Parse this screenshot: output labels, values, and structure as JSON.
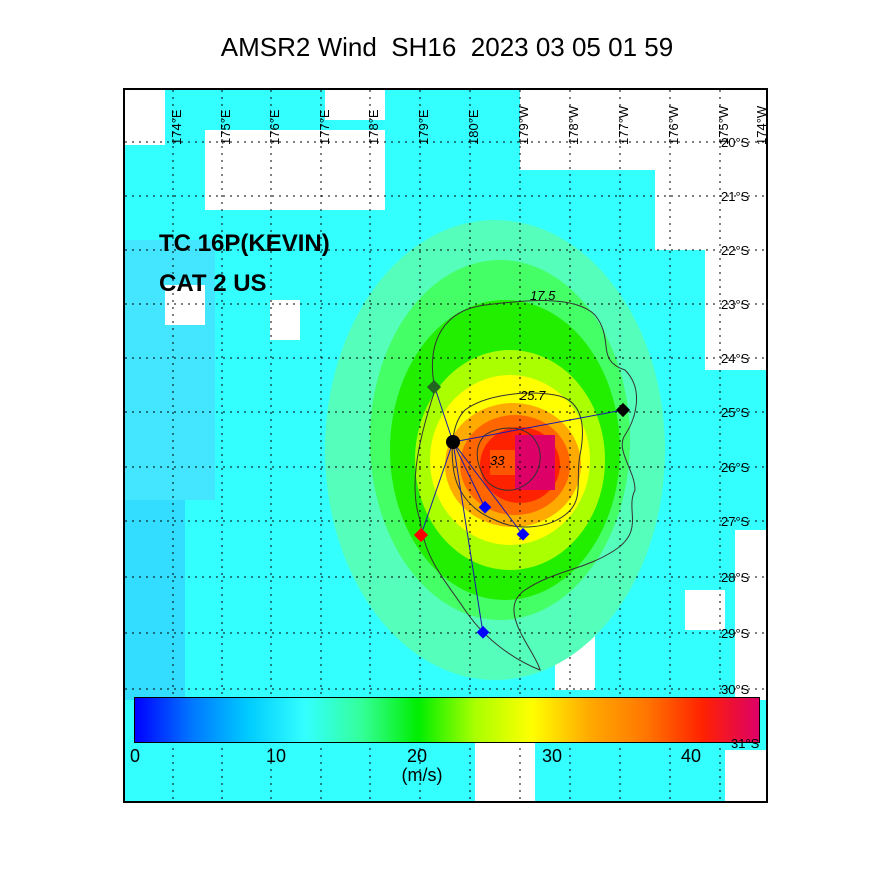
{
  "title": "AMSR2 Wind  SH16  2023 03 05 01 59",
  "storm": {
    "name": "TC 16P(KEVIN)",
    "category": "CAT 2 US"
  },
  "lon_labels": [
    "174°E",
    "175°E",
    "176°E",
    "177°E",
    "178°E",
    "179°E",
    "180°E",
    "179°W",
    "178°W",
    "177°W",
    "176°W",
    "175°W",
    "174°W"
  ],
  "lat_labels": [
    "20°S",
    "21°S",
    "22°S",
    "23°S",
    "24°S",
    "25°S",
    "26°S",
    "27°S",
    "28°S",
    "29°S",
    "30°S",
    "31°S"
  ],
  "contours": [
    {
      "label": "17.5"
    },
    {
      "label": "25.7"
    },
    {
      "label": "33"
    }
  ],
  "colorbar": {
    "ticks": [
      "0",
      "10",
      "20",
      "30",
      "40"
    ],
    "unit": "(m/s)",
    "colors": [
      "#0000ff",
      "#0077ff",
      "#00ccff",
      "#33ffff",
      "#33ff99",
      "#00ee00",
      "#aaff00",
      "#ffff00",
      "#ffaa00",
      "#ff7700",
      "#ff2200",
      "#dd0066"
    ]
  },
  "colors": {
    "background_wind": "#33ffff",
    "land_missing": "#ffffff",
    "track_line": "#0000cc"
  }
}
